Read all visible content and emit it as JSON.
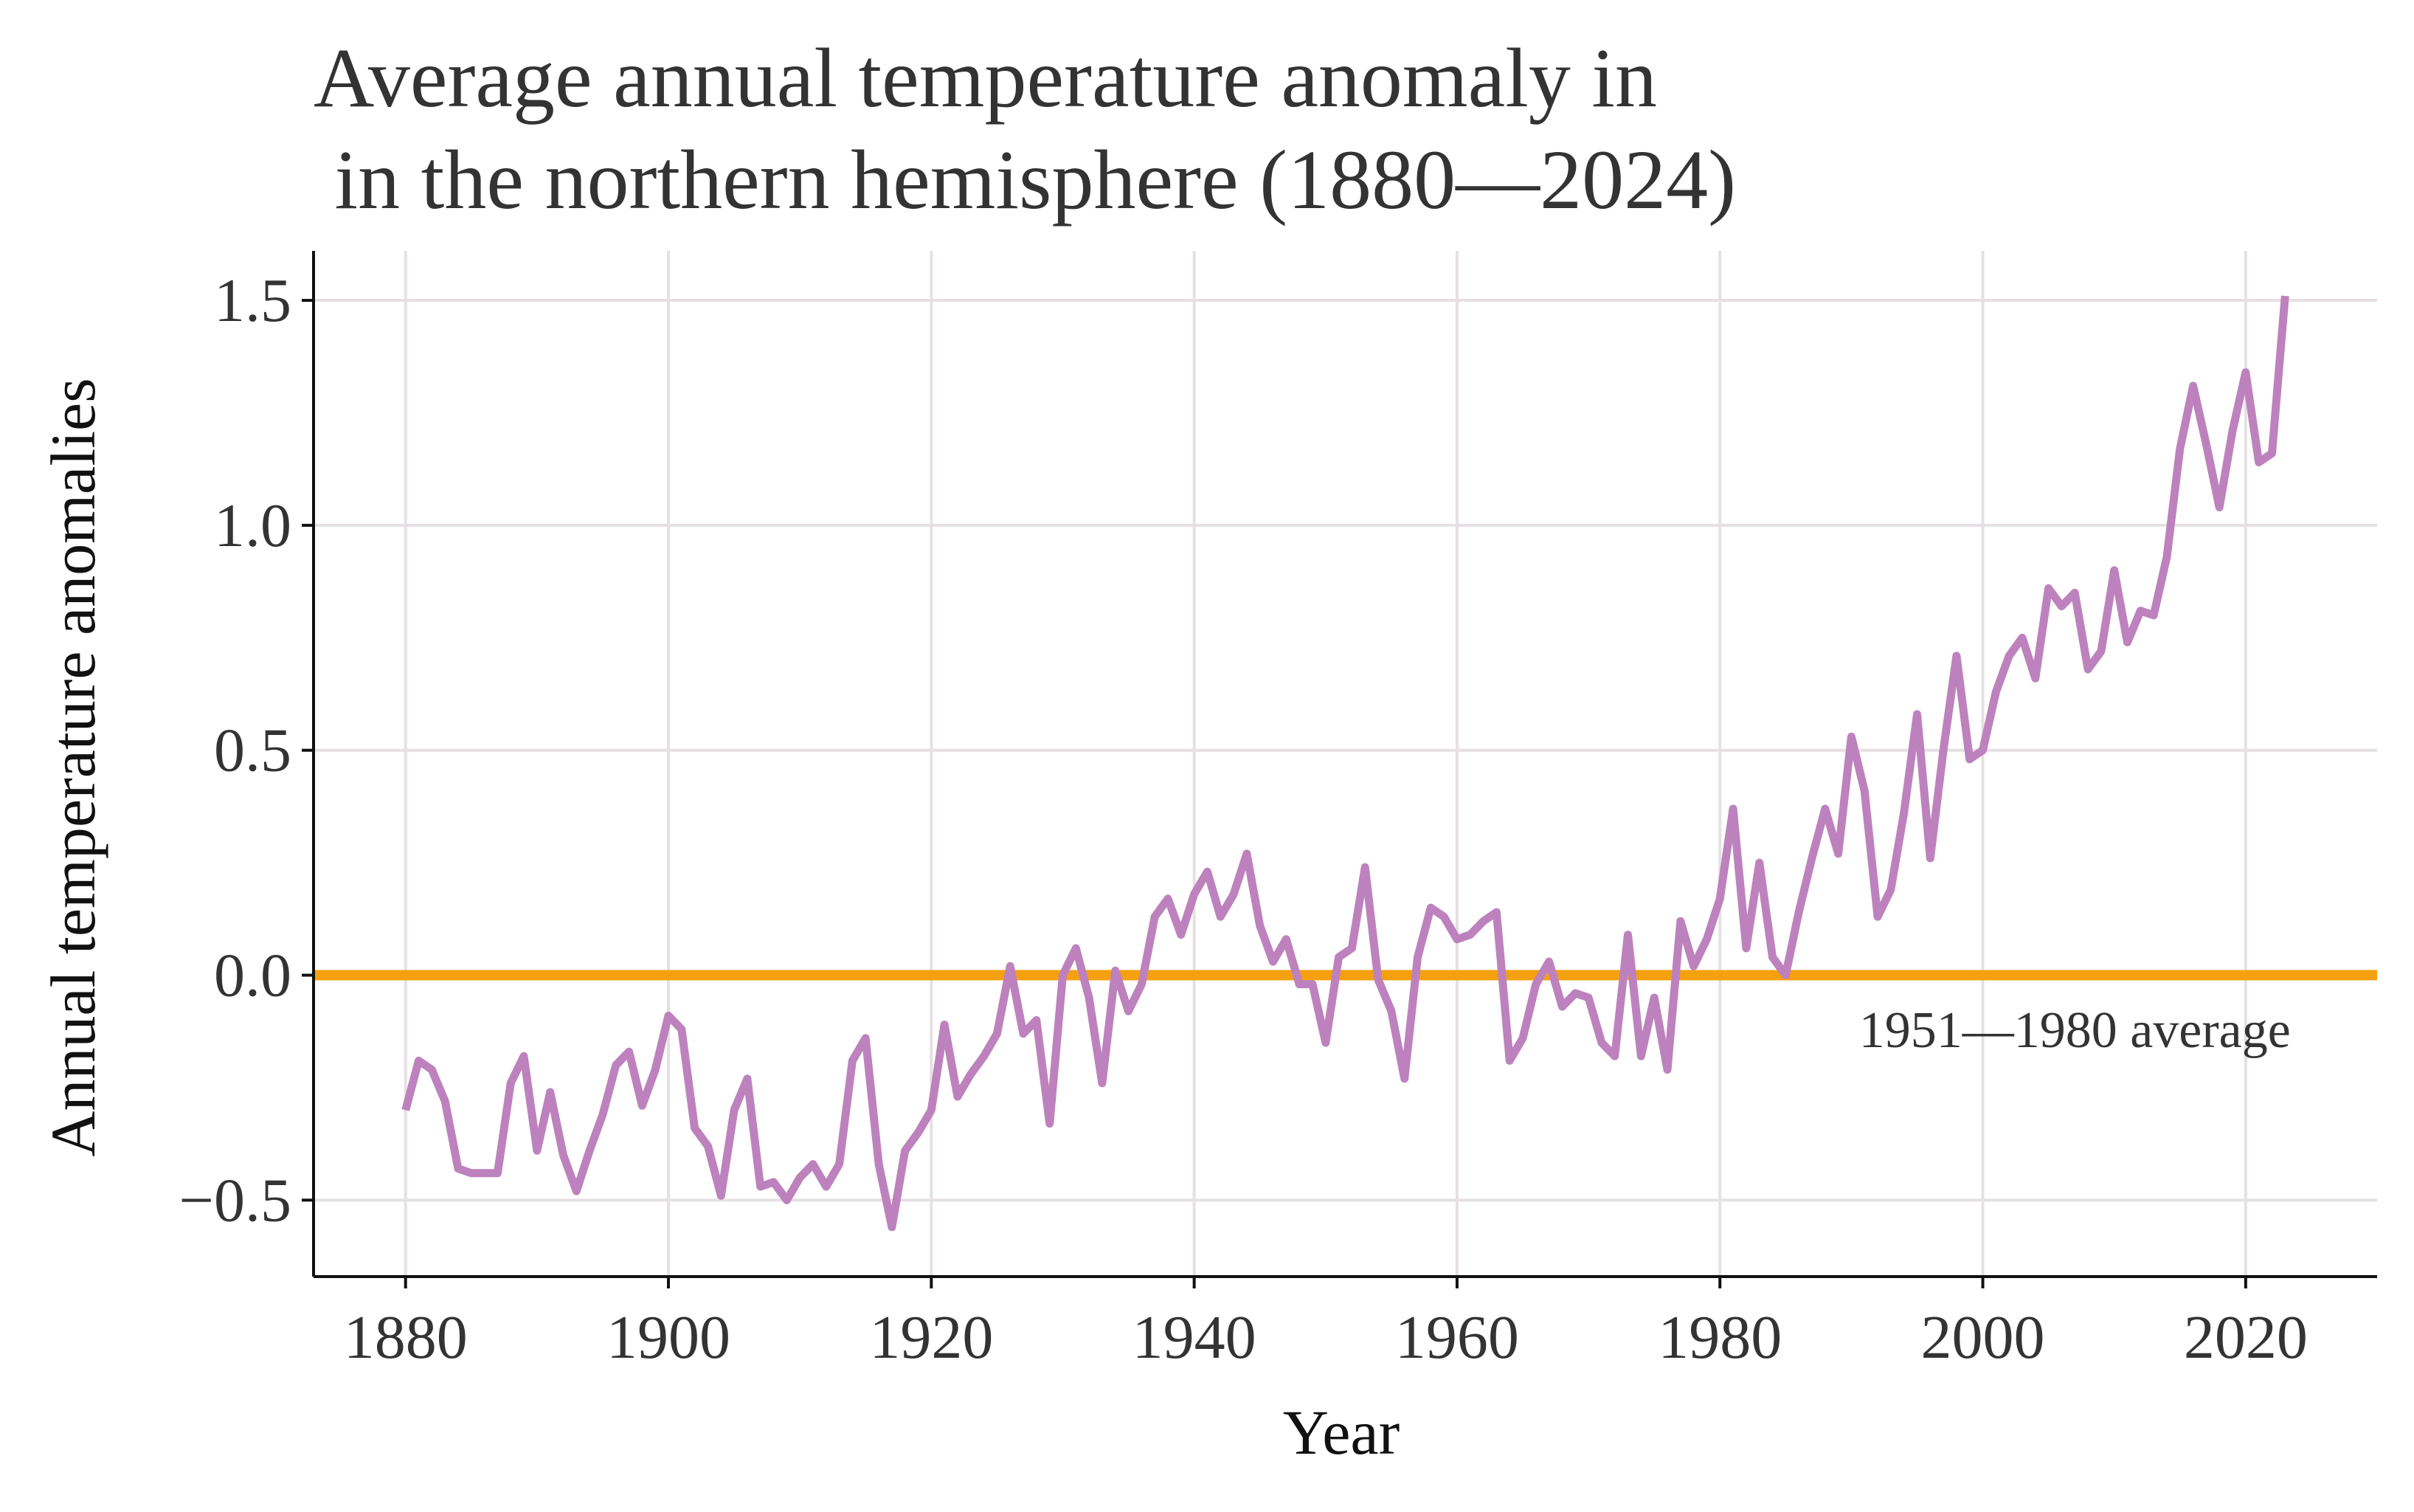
{
  "chart_data": {
    "type": "line",
    "title_line1": "Average annual temperature anomaly in",
    "title_line2": " in the northern hemisphere (1880—2024)",
    "xlabel": "Year",
    "ylabel": "Annual temperature anomalies",
    "xlim": [
      1873,
      2030
    ],
    "ylim": [
      -0.67,
      1.61
    ],
    "xticks": [
      1880,
      1900,
      1920,
      1940,
      1960,
      1980,
      2000,
      2020
    ],
    "xtick_labels": [
      "1880",
      "1900",
      "1920",
      "1940",
      "1960",
      "1980",
      "2000",
      "2020"
    ],
    "yticks": [
      1.5,
      1.0,
      0.5,
      0.0,
      -0.5
    ],
    "ytick_labels": [
      "1.5",
      "1.0",
      "0.5",
      "0.0",
      "−0.5"
    ],
    "grid": true,
    "reference_line": {
      "y": 0.0,
      "color": "#f5a00f"
    },
    "annotation": {
      "text": "1951—1980 average",
      "x": 2007,
      "y": -0.16
    },
    "series": [
      {
        "color": "#bd82bd",
        "x": [
          1880,
          1881,
          1882,
          1883,
          1884,
          1885,
          1886,
          1887,
          1888,
          1889,
          1890,
          1891,
          1892,
          1893,
          1894,
          1895,
          1896,
          1897,
          1898,
          1899,
          1900,
          1901,
          1902,
          1903,
          1904,
          1905,
          1906,
          1907,
          1908,
          1909,
          1910,
          1911,
          1912,
          1913,
          1914,
          1915,
          1916,
          1917,
          1918,
          1919,
          1920,
          1921,
          1922,
          1923,
          1924,
          1925,
          1926,
          1927,
          1928,
          1929,
          1930,
          1931,
          1932,
          1933,
          1934,
          1935,
          1936,
          1937,
          1938,
          1939,
          1940,
          1941,
          1942,
          1943,
          1944,
          1945,
          1946,
          1947,
          1948,
          1949,
          1950,
          1951,
          1952,
          1953,
          1954,
          1955,
          1956,
          1957,
          1958,
          1959,
          1960,
          1961,
          1962,
          1963,
          1964,
          1965,
          1966,
          1967,
          1968,
          1969,
          1970,
          1971,
          1972,
          1973,
          1974,
          1975,
          1976,
          1977,
          1978,
          1979,
          1980,
          1981,
          1982,
          1983,
          1984,
          1985,
          1986,
          1987,
          1988,
          1989,
          1990,
          1991,
          1992,
          1993,
          1994,
          1995,
          1996,
          1997,
          1998,
          1999,
          2000,
          2001,
          2002,
          2003,
          2004,
          2005,
          2006,
          2007,
          2008,
          2009,
          2010,
          2011,
          2012,
          2013,
          2014,
          2015,
          2016,
          2017,
          2018,
          2019,
          2020,
          2021,
          2022,
          2023
        ],
        "values": [
          -0.3,
          -0.19,
          -0.21,
          -0.28,
          -0.43,
          -0.44,
          -0.44,
          -0.44,
          -0.24,
          -0.18,
          -0.39,
          -0.26,
          -0.4,
          -0.48,
          -0.39,
          -0.31,
          -0.2,
          -0.17,
          -0.29,
          -0.21,
          -0.09,
          -0.12,
          -0.34,
          -0.38,
          -0.49,
          -0.3,
          -0.23,
          -0.47,
          -0.46,
          -0.5,
          -0.45,
          -0.42,
          -0.47,
          -0.42,
          -0.19,
          -0.14,
          -0.42,
          -0.56,
          -0.39,
          -0.35,
          -0.3,
          -0.11,
          -0.27,
          -0.22,
          -0.18,
          -0.13,
          0.02,
          -0.13,
          -0.1,
          -0.33,
          0.0,
          0.06,
          -0.05,
          -0.24,
          0.01,
          -0.08,
          -0.02,
          0.13,
          0.17,
          0.09,
          0.18,
          0.23,
          0.13,
          0.18,
          0.27,
          0.11,
          0.03,
          0.08,
          -0.02,
          -0.02,
          -0.15,
          0.04,
          0.06,
          0.24,
          -0.01,
          -0.08,
          -0.23,
          0.04,
          0.15,
          0.13,
          0.08,
          0.09,
          0.12,
          0.14,
          -0.19,
          -0.14,
          -0.02,
          0.03,
          -0.07,
          -0.04,
          -0.05,
          -0.15,
          -0.18,
          0.09,
          -0.18,
          -0.05,
          -0.21,
          0.12,
          0.02,
          0.08,
          0.17,
          0.37,
          0.06,
          0.25,
          0.04,
          0.0,
          0.14,
          0.26,
          0.37,
          0.27,
          0.53,
          0.41,
          0.13,
          0.19,
          0.36,
          0.58,
          0.26,
          0.5,
          0.71,
          0.48,
          0.5,
          0.63,
          0.71,
          0.75,
          0.66,
          0.86,
          0.82,
          0.85,
          0.68,
          0.72,
          0.9,
          0.74,
          0.81,
          0.8,
          0.93,
          1.17,
          1.31,
          1.18,
          1.04,
          1.21,
          1.34,
          1.14,
          1.16,
          1.51
        ]
      }
    ]
  }
}
